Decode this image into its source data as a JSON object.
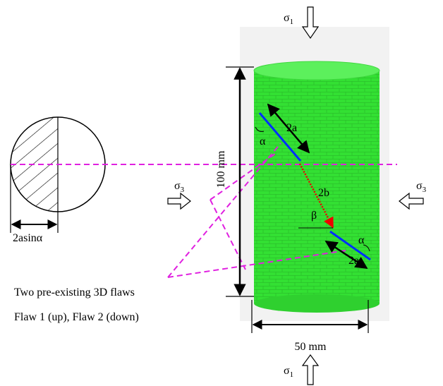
{
  "loads": {
    "sigma1_top": {
      "symbol": "σ",
      "subscript": "1"
    },
    "sigma1_bottom": {
      "symbol": "σ",
      "subscript": "1"
    },
    "sigma3_left": {
      "symbol": "σ",
      "subscript": "3"
    },
    "sigma3_right": {
      "symbol": "σ",
      "subscript": "3"
    }
  },
  "dimensions": {
    "height": "100 mm",
    "diameter": "50 mm"
  },
  "flaws": {
    "flaw1_length": "2a",
    "flaw1_angle": "α",
    "flaw2_length": "2a",
    "flaw2_angle": "α",
    "spacing": "2b",
    "bridge_angle": "β"
  },
  "section": {
    "chord_label": "2asinα"
  },
  "caption": {
    "line1": "Two pre-existing 3D flaws",
    "line2": "Flaw 1 (up), Flaw 2 (down)"
  }
}
